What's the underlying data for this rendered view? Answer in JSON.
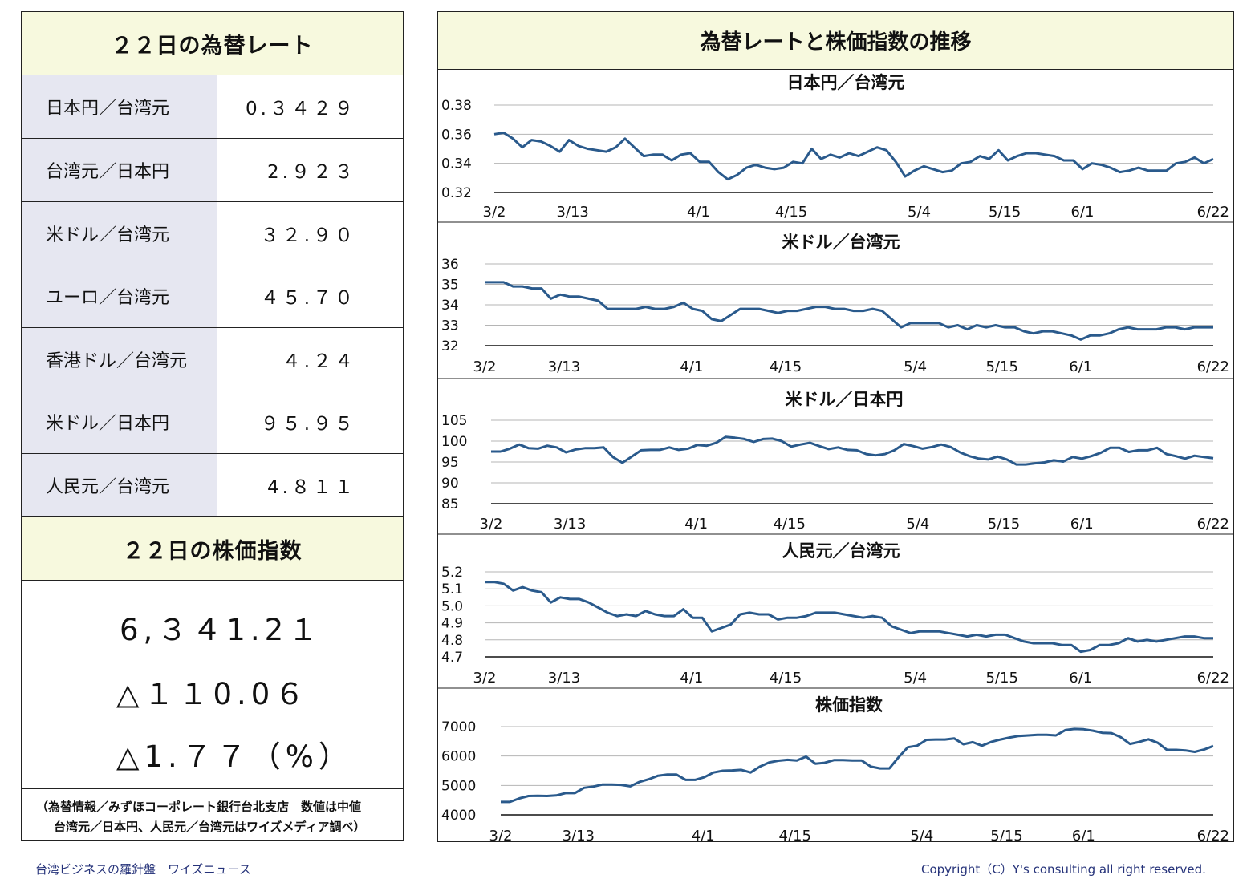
{
  "left_panel": {
    "rate_title": "２２日の為替レート",
    "rates": [
      {
        "label": "日本円／台湾元",
        "value": "0.３４２９"
      },
      {
        "label": "台湾元／日本円",
        "value": "2.９２３"
      },
      {
        "label": "米ドル／台湾元",
        "value": "３２.９０"
      },
      {
        "label": "ユーロ／台湾元",
        "value": "４５.７０"
      },
      {
        "label": "香港ドル／台湾元",
        "value": "４.２４"
      },
      {
        "label": "米ドル／日本円",
        "value": "９５.９５"
      },
      {
        "label": "人民元／台湾元",
        "value": "4.８１１"
      }
    ],
    "stock_title": "２２日の株価指数",
    "stock_value": "6,３４1.2１",
    "stock_change": "△１１0.0６",
    "stock_change_pct": "△1.７７（%）",
    "source_line1": "（為替情報／みずほコーポレート銀行台北支店　数値は中値",
    "source_line2": "台湾元／日本円、人民元／台湾元はワイズメディア調べ）"
  },
  "right_panel": {
    "title": "為替レートと株価指数の推移"
  },
  "footer": {
    "left": "台湾ビジネスの羅針盤　ワイズニュース",
    "right": "Copyright（C）Y's consulting all right reserved."
  },
  "chart_data": [
    {
      "type": "line",
      "title": "日本円／台湾元",
      "x_tick_labels": [
        "3/2",
        "3/13",
        "4/1",
        "4/15",
        "5/4",
        "5/15",
        "6/1",
        "6/22"
      ],
      "y_ticks": [
        "0.38",
        "0.36",
        "0.34",
        "0.32"
      ],
      "ylim": [
        0.32,
        0.38
      ],
      "line_color": "#2a5a8c",
      "values": [
        0.36,
        0.361,
        0.357,
        0.351,
        0.356,
        0.355,
        0.352,
        0.348,
        0.356,
        0.352,
        0.35,
        0.349,
        0.348,
        0.351,
        0.357,
        0.351,
        0.345,
        0.346,
        0.346,
        0.342,
        0.346,
        0.347,
        0.341,
        0.341,
        0.334,
        0.329,
        0.332,
        0.337,
        0.339,
        0.337,
        0.336,
        0.337,
        0.341,
        0.34,
        0.35,
        0.343,
        0.346,
        0.344,
        0.347,
        0.345,
        0.348,
        0.351,
        0.349,
        0.341,
        0.331,
        0.335,
        0.338,
        0.336,
        0.334,
        0.335,
        0.34,
        0.341,
        0.345,
        0.343,
        0.349,
        0.342,
        0.345,
        0.347,
        0.347,
        0.346,
        0.345,
        0.342,
        0.342,
        0.336,
        0.34,
        0.339,
        0.337,
        0.334,
        0.335,
        0.337,
        0.335,
        0.335,
        0.335,
        0.34,
        0.341,
        0.344,
        0.34,
        0.343
      ]
    },
    {
      "type": "line",
      "title": "米ドル／台湾元",
      "x_tick_labels": [
        "3/2",
        "3/13",
        "4/1",
        "4/15",
        "5/4",
        "5/15",
        "6/1",
        "6/22"
      ],
      "y_ticks": [
        "36",
        "35",
        "34",
        "33",
        "32"
      ],
      "ylim": [
        32,
        36
      ],
      "line_color": "#2a5a8c",
      "values": [
        35.1,
        35.1,
        35.1,
        34.9,
        34.9,
        34.8,
        34.8,
        34.3,
        34.5,
        34.4,
        34.4,
        34.3,
        34.2,
        33.8,
        33.8,
        33.8,
        33.8,
        33.9,
        33.8,
        33.8,
        33.9,
        34.1,
        33.8,
        33.7,
        33.3,
        33.2,
        33.5,
        33.8,
        33.8,
        33.8,
        33.7,
        33.6,
        33.7,
        33.7,
        33.8,
        33.9,
        33.9,
        33.8,
        33.8,
        33.7,
        33.7,
        33.8,
        33.7,
        33.3,
        32.9,
        33.1,
        33.1,
        33.1,
        33.1,
        32.9,
        33.0,
        32.8,
        33.0,
        32.9,
        33.0,
        32.9,
        32.9,
        32.7,
        32.6,
        32.7,
        32.7,
        32.6,
        32.5,
        32.3,
        32.5,
        32.5,
        32.6,
        32.8,
        32.9,
        32.8,
        32.8,
        32.8,
        32.9,
        32.9,
        32.8,
        32.9,
        32.9,
        32.9
      ]
    },
    {
      "type": "line",
      "title": "米ドル／日本円",
      "x_tick_labels": [
        "3/2",
        "3/13",
        "4/1",
        "4/15",
        "5/4",
        "5/15",
        "6/1",
        "6/22"
      ],
      "y_ticks": [
        "105",
        "100",
        "95",
        "90",
        "85"
      ],
      "ylim": [
        85,
        105
      ],
      "line_color": "#2a5a8c",
      "values": [
        97.5,
        97.5,
        98.2,
        99.2,
        98.3,
        98.2,
        98.9,
        98.5,
        97.3,
        98.0,
        98.3,
        98.3,
        98.5,
        96.2,
        94.8,
        96.3,
        97.8,
        97.9,
        97.9,
        98.5,
        97.9,
        98.2,
        99.1,
        98.9,
        99.6,
        101.0,
        100.8,
        100.5,
        99.8,
        100.5,
        100.6,
        100.0,
        98.7,
        99.2,
        99.6,
        98.8,
        98.1,
        98.5,
        97.9,
        97.8,
        96.9,
        96.6,
        96.9,
        97.8,
        99.3,
        98.8,
        98.2,
        98.6,
        99.2,
        98.6,
        97.3,
        96.4,
        95.8,
        95.6,
        96.3,
        95.6,
        94.4,
        94.4,
        94.7,
        94.9,
        95.4,
        95.1,
        96.2,
        95.8,
        96.4,
        97.2,
        98.4,
        98.4,
        97.4,
        97.8,
        97.8,
        98.4,
        96.9,
        96.4,
        95.8,
        96.5,
        96.2,
        95.9
      ]
    },
    {
      "type": "line",
      "title": "人民元／台湾元",
      "x_tick_labels": [
        "3/2",
        "3/13",
        "4/1",
        "4/15",
        "5/4",
        "5/15",
        "6/1",
        "6/22"
      ],
      "y_ticks": [
        "5.2",
        "5.1",
        "5.0",
        "4.9",
        "4.8",
        "4.7"
      ],
      "ylim": [
        4.7,
        5.2
      ],
      "line_color": "#2a5a8c",
      "values": [
        5.14,
        5.14,
        5.13,
        5.09,
        5.11,
        5.09,
        5.08,
        5.02,
        5.05,
        5.04,
        5.04,
        5.02,
        4.99,
        4.96,
        4.94,
        4.95,
        4.94,
        4.97,
        4.95,
        4.94,
        4.94,
        4.98,
        4.93,
        4.93,
        4.85,
        4.87,
        4.89,
        4.95,
        4.96,
        4.95,
        4.95,
        4.92,
        4.93,
        4.93,
        4.94,
        4.96,
        4.96,
        4.96,
        4.95,
        4.94,
        4.93,
        4.94,
        4.93,
        4.88,
        4.86,
        4.84,
        4.85,
        4.85,
        4.85,
        4.84,
        4.83,
        4.82,
        4.83,
        4.82,
        4.83,
        4.83,
        4.81,
        4.79,
        4.78,
        4.78,
        4.78,
        4.77,
        4.77,
        4.73,
        4.74,
        4.77,
        4.77,
        4.78,
        4.81,
        4.79,
        4.8,
        4.79,
        4.8,
        4.81,
        4.82,
        4.82,
        4.81,
        4.81
      ]
    },
    {
      "type": "line",
      "title": "株価指数",
      "x_tick_labels": [
        "3/2",
        "3/13",
        "4/1",
        "4/15",
        "5/4",
        "5/15",
        "6/1",
        "6/22"
      ],
      "y_ticks": [
        "7000",
        "6000",
        "5000",
        "4000"
      ],
      "ylim": [
        4000,
        7000
      ],
      "line_color": "#2a5a8c",
      "values": [
        4440,
        4440,
        4560,
        4640,
        4650,
        4640,
        4660,
        4740,
        4740,
        4920,
        4960,
        5030,
        5030,
        5020,
        4970,
        5120,
        5210,
        5330,
        5370,
        5370,
        5190,
        5190,
        5280,
        5440,
        5500,
        5510,
        5530,
        5440,
        5640,
        5780,
        5840,
        5870,
        5850,
        5980,
        5740,
        5770,
        5860,
        5860,
        5850,
        5850,
        5640,
        5580,
        5580,
        5960,
        6300,
        6350,
        6550,
        6560,
        6560,
        6600,
        6400,
        6470,
        6350,
        6480,
        6560,
        6630,
        6680,
        6700,
        6720,
        6720,
        6700,
        6880,
        6920,
        6910,
        6860,
        6790,
        6780,
        6640,
        6410,
        6480,
        6570,
        6450,
        6210,
        6210,
        6190,
        6140,
        6220,
        6341
      ]
    }
  ]
}
